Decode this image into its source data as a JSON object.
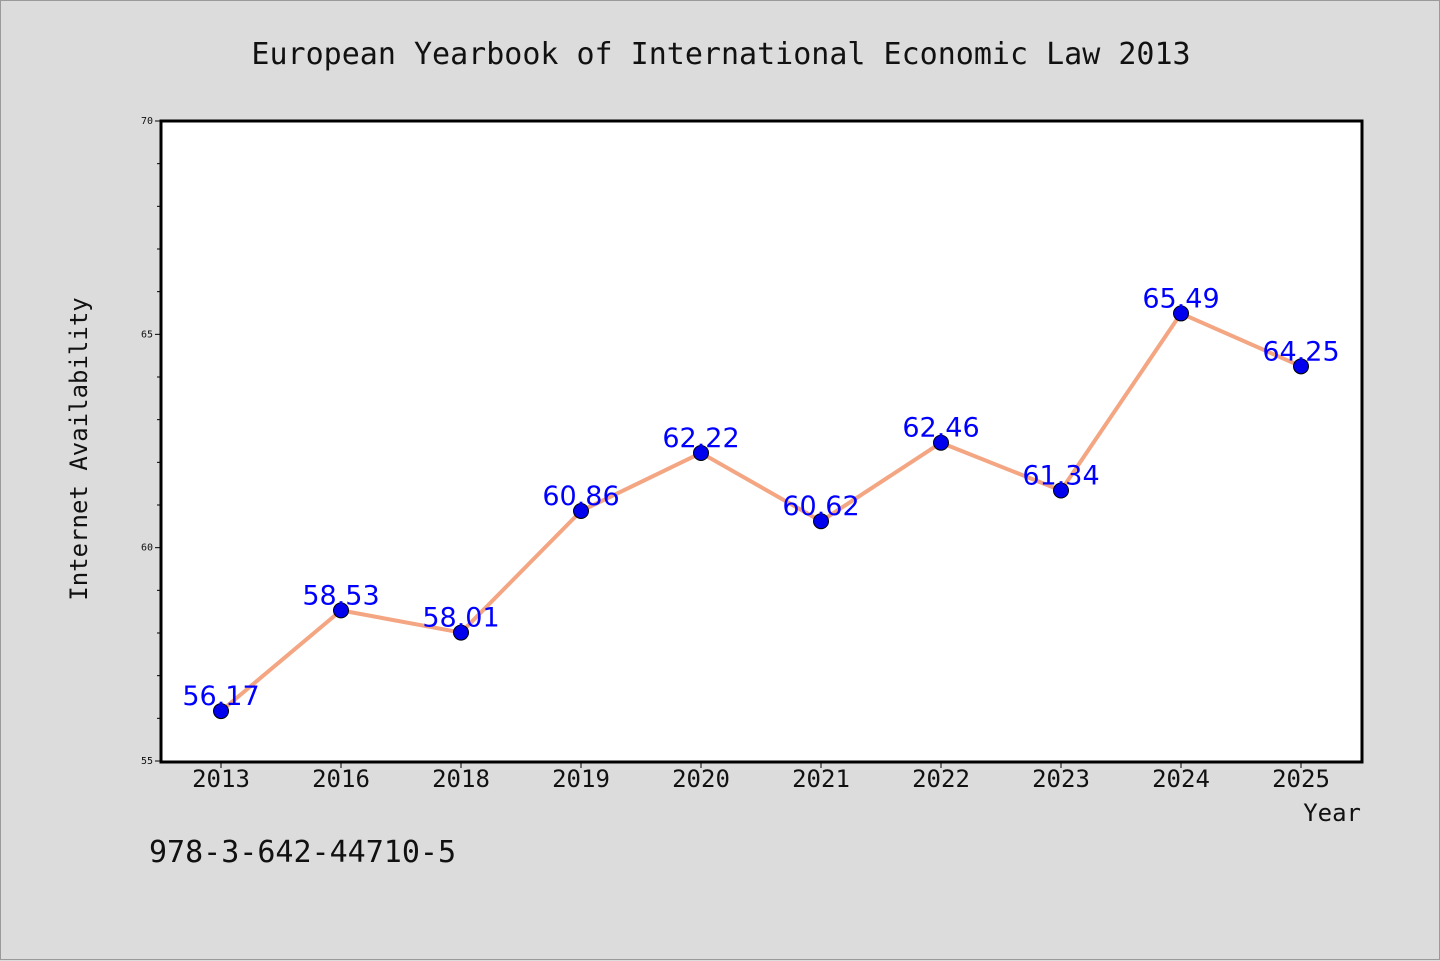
{
  "chart_data": {
    "type": "line",
    "title": "European Yearbook of International Economic Law 2013",
    "xlabel": "Year",
    "ylabel": "Internet Availability",
    "categories": [
      "2013",
      "2016",
      "2018",
      "2019",
      "2020",
      "2021",
      "2022",
      "2023",
      "2024",
      "2025"
    ],
    "series": [
      {
        "values": [
          56.17,
          58.53,
          58.01,
          60.86,
          62.22,
          60.62,
          62.46,
          61.34,
          65.49,
          64.25
        ],
        "labels": [
          "56.17",
          "58.53",
          "58.01",
          "60.86",
          "62.22",
          "60.62",
          "62.46",
          "61.34",
          "65.49",
          "64.25"
        ]
      }
    ],
    "ylim": [
      55,
      70
    ],
    "yticks": [
      "55",
      "60",
      "65",
      "70"
    ],
    "grid": false,
    "legend": "none",
    "colors": {
      "line": "#f4a582",
      "marker": "#0000ee",
      "data_label": "#0000ff",
      "background": "#dcdcdc",
      "plot_area": "#ffffff"
    }
  },
  "footer": {
    "isbn": "978-3-642-44710-5"
  }
}
